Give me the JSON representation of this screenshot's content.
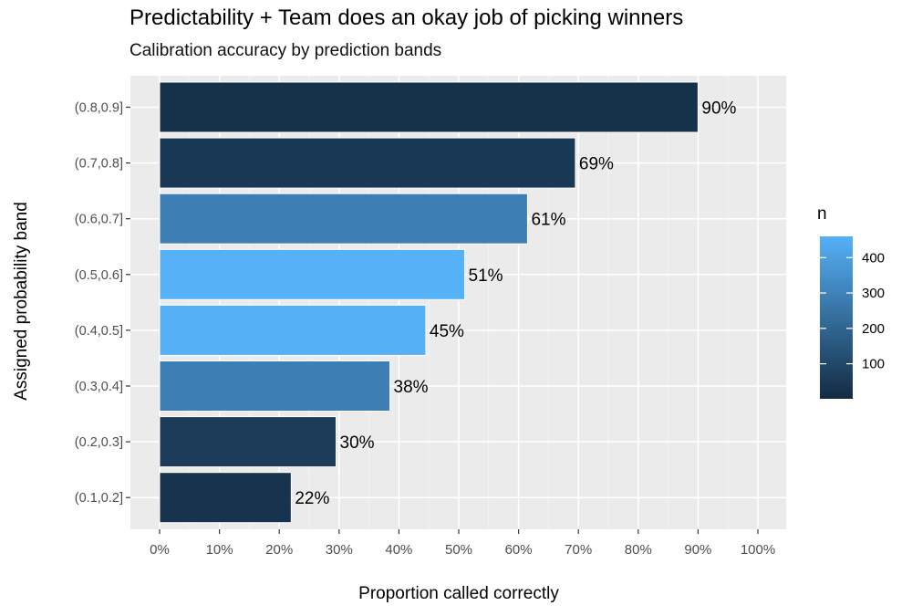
{
  "chart_data": {
    "type": "bar",
    "orientation": "horizontal",
    "title": "Predictability + Team does an okay job of picking winners",
    "subtitle": "Calibration accuracy by prediction bands",
    "xlabel": "Proportion called correctly",
    "ylabel": "Assigned probability band",
    "xlim": [
      0,
      1.0
    ],
    "x_ticks": [
      "0%",
      "10%",
      "20%",
      "30%",
      "40%",
      "50%",
      "60%",
      "70%",
      "80%",
      "90%",
      "100%"
    ],
    "categories": [
      "(0.8,0.9]",
      "(0.7,0.8]",
      "(0.6,0.7]",
      "(0.5,0.6]",
      "(0.4,0.5]",
      "(0.3,0.4]",
      "(0.2,0.3]",
      "(0.1,0.2]"
    ],
    "values": [
      0.9,
      0.695,
      0.615,
      0.51,
      0.445,
      0.385,
      0.295,
      0.22
    ],
    "value_labels": [
      "90%",
      "69%",
      "61%",
      "51%",
      "45%",
      "38%",
      "30%",
      "22%"
    ],
    "n": [
      20,
      45,
      290,
      460,
      455,
      290,
      60,
      30
    ],
    "legend": {
      "title": "n",
      "ticks": [
        100,
        200,
        300,
        400
      ],
      "range": [
        1,
        460
      ],
      "color_low": "#132b43",
      "color_high": "#56b1f7"
    },
    "grid": true,
    "panel_background": "#ebebeb"
  }
}
